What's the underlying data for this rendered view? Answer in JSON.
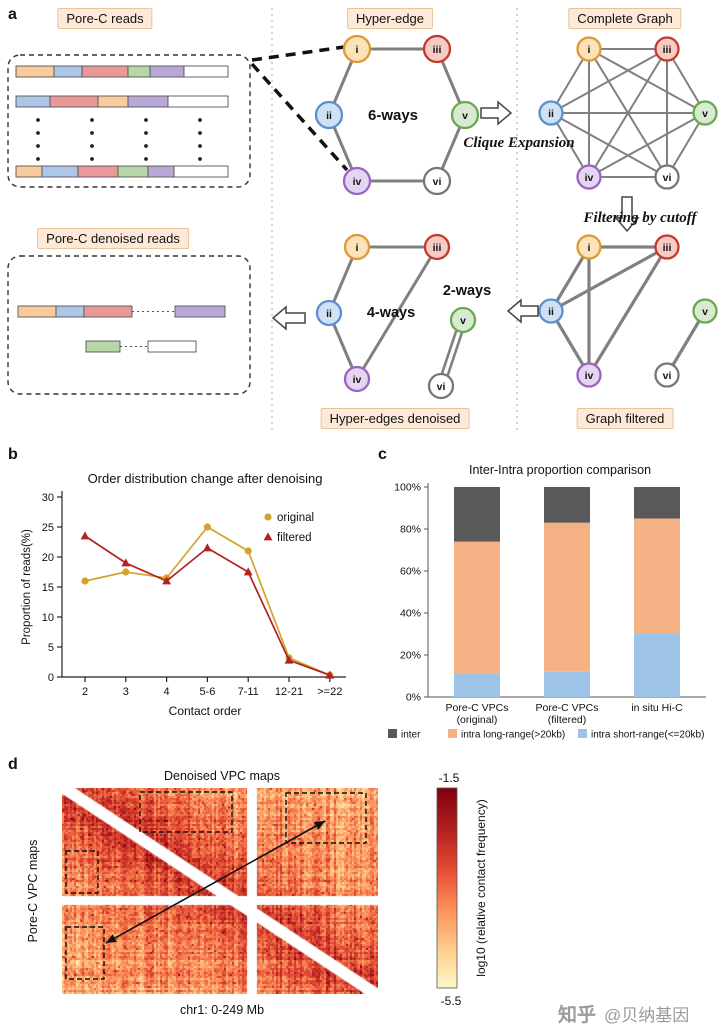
{
  "figure": {
    "panel_labels": {
      "a": "a",
      "b": "b",
      "c": "c",
      "d": "d"
    }
  },
  "panel_a": {
    "boxes": {
      "pore_c_reads": "Pore-C reads",
      "hyper_edge": "Hyper-edge",
      "complete_graph": "Complete Graph",
      "pore_c_denoised_reads": "Pore-C denoised reads",
      "hyper_edges_denoised": "Hyper-edges denoised",
      "graph_filtered": "Graph filtered"
    },
    "annotations": {
      "six_ways": "6-ways",
      "four_ways": "4-ways",
      "two_ways": "2-ways",
      "clique_expansion": "Clique Expansion",
      "filtering_by_cutoff": "Filtering by cutoff"
    },
    "node_styles": {
      "i": {
        "label": "i",
        "fill": "#fbe2b8",
        "stroke": "#dd9933"
      },
      "ii": {
        "label": "ii",
        "fill": "#cfe2f3",
        "stroke": "#5b8fd0"
      },
      "iii": {
        "label": "iii",
        "fill": "#f6cbc4",
        "stroke": "#c4392b"
      },
      "iv": {
        "label": "iv",
        "fill": "#e4d5f0",
        "stroke": "#9a63c0"
      },
      "v": {
        "label": "v",
        "fill": "#d9ead3",
        "stroke": "#6aa84f"
      },
      "vi": {
        "label": "vi",
        "fill": "#ffffff",
        "stroke": "#777777"
      }
    },
    "graphs": {
      "hyper_edge": {
        "edges": [
          [
            "i",
            "iii"
          ],
          [
            "i",
            "ii"
          ],
          [
            "iii",
            "v"
          ],
          [
            "ii",
            "iv"
          ],
          [
            "v",
            "vi"
          ],
          [
            "iv",
            "vi"
          ]
        ]
      },
      "complete": {
        "edges": [
          [
            "i",
            "ii"
          ],
          [
            "i",
            "iii"
          ],
          [
            "i",
            "iv"
          ],
          [
            "i",
            "v"
          ],
          [
            "i",
            "vi"
          ],
          [
            "ii",
            "iii"
          ],
          [
            "ii",
            "iv"
          ],
          [
            "ii",
            "v"
          ],
          [
            "ii",
            "vi"
          ],
          [
            "iii",
            "iv"
          ],
          [
            "iii",
            "v"
          ],
          [
            "iii",
            "vi"
          ],
          [
            "iv",
            "v"
          ],
          [
            "iv",
            "vi"
          ],
          [
            "v",
            "vi"
          ]
        ]
      },
      "filtered": {
        "edges": [
          [
            "i",
            "ii"
          ],
          [
            "i",
            "iii"
          ],
          [
            "i",
            "iv"
          ],
          [
            "ii",
            "iii"
          ],
          [
            "ii",
            "iv"
          ],
          [
            "iii",
            "iv"
          ],
          [
            "v",
            "vi"
          ]
        ]
      },
      "denoised_4ways": {
        "edges": [
          [
            "i",
            "iii"
          ],
          [
            "i",
            "ii"
          ],
          [
            "ii",
            "iv"
          ],
          [
            "iii",
            "iv"
          ]
        ]
      },
      "denoised_2ways": {
        "edges": [
          [
            "v",
            "vi"
          ]
        ]
      }
    },
    "original_reads": [
      [
        "orange",
        "blue",
        "red",
        "green",
        "purple",
        "white"
      ],
      [
        "blue",
        "red",
        "orange",
        "purple",
        "white"
      ],
      [
        "orange",
        "blue",
        "red",
        "green",
        "purple",
        "white"
      ]
    ],
    "denoised_reads": [
      {
        "groups": [
          [
            "orange",
            "blue",
            "red"
          ],
          [
            "purple"
          ]
        ]
      },
      {
        "groups": [
          [
            "green"
          ],
          [
            "white"
          ]
        ]
      }
    ],
    "segment_colors": {
      "orange": "#f9cb9c",
      "blue": "#aec6e8",
      "red": "#ea9999",
      "green": "#b6d7a8",
      "purple": "#b9a7d8",
      "white": "#ffffff"
    }
  },
  "chart_data": [
    {
      "id": "order_distribution",
      "type": "line",
      "title": "Order distribution change after denoising",
      "xlabel": "Contact order",
      "ylabel": "Proportion of reads(%)",
      "categories": [
        "2",
        "3",
        "4",
        "5-6",
        "7-11",
        "12-21",
        ">=22"
      ],
      "ylim": [
        0,
        30
      ],
      "yticks": [
        0,
        5,
        10,
        15,
        20,
        25,
        30
      ],
      "legend_position": "upper right",
      "grid": false,
      "series": [
        {
          "name": "original",
          "color": "#d2a42c",
          "marker": "circle",
          "values": [
            16,
            17.5,
            16.5,
            25,
            21,
            3.2,
            0.3
          ]
        },
        {
          "name": "filtered",
          "color": "#b22222",
          "marker": "triangle",
          "values": [
            23.5,
            19,
            16,
            21.5,
            17.5,
            2.8,
            0.3
          ]
        }
      ]
    },
    {
      "id": "inter_intra_proportion",
      "type": "bar",
      "stacked": true,
      "title": "Inter-Intra proportion comparison",
      "yticks": [
        "0%",
        "20%",
        "40%",
        "60%",
        "80%",
        "100%"
      ],
      "ylim": [
        0,
        100
      ],
      "categories": [
        [
          "Pore-C VPCs",
          "(original)"
        ],
        [
          "Pore-C VPCs",
          "(filtered)"
        ],
        [
          "in situ Hi-C"
        ]
      ],
      "series": [
        {
          "name": "intra short-range(<=20kb)",
          "color": "#9dc3e6",
          "values": [
            11,
            12,
            30
          ]
        },
        {
          "name": "intra long-range(>20kb)",
          "color": "#f4b183",
          "values": [
            63,
            71,
            55
          ]
        },
        {
          "name": "inter",
          "color": "#595959",
          "values": [
            26,
            17,
            15
          ]
        }
      ],
      "legend_order": [
        "inter",
        "intra long-range(>20kb)",
        "intra short-range(<=20kb)"
      ]
    },
    {
      "id": "vpc_heatmap",
      "type": "heatmap",
      "title": "Denoised VPC maps",
      "ylabel": "Pore-C VPC maps",
      "xlabel": "chr1:  0-249 Mb",
      "colorbar": {
        "label": "log10 (relative contact frequency)",
        "max": "-1.5",
        "min": "-5.5",
        "colors": [
          "#7f0010",
          "#b01e1e",
          "#e34a33",
          "#fc8d59",
          "#fdcc8a",
          "#fff7c8"
        ]
      }
    }
  ],
  "watermark": {
    "brand": "知乎",
    "handle": "@贝纳基因"
  }
}
